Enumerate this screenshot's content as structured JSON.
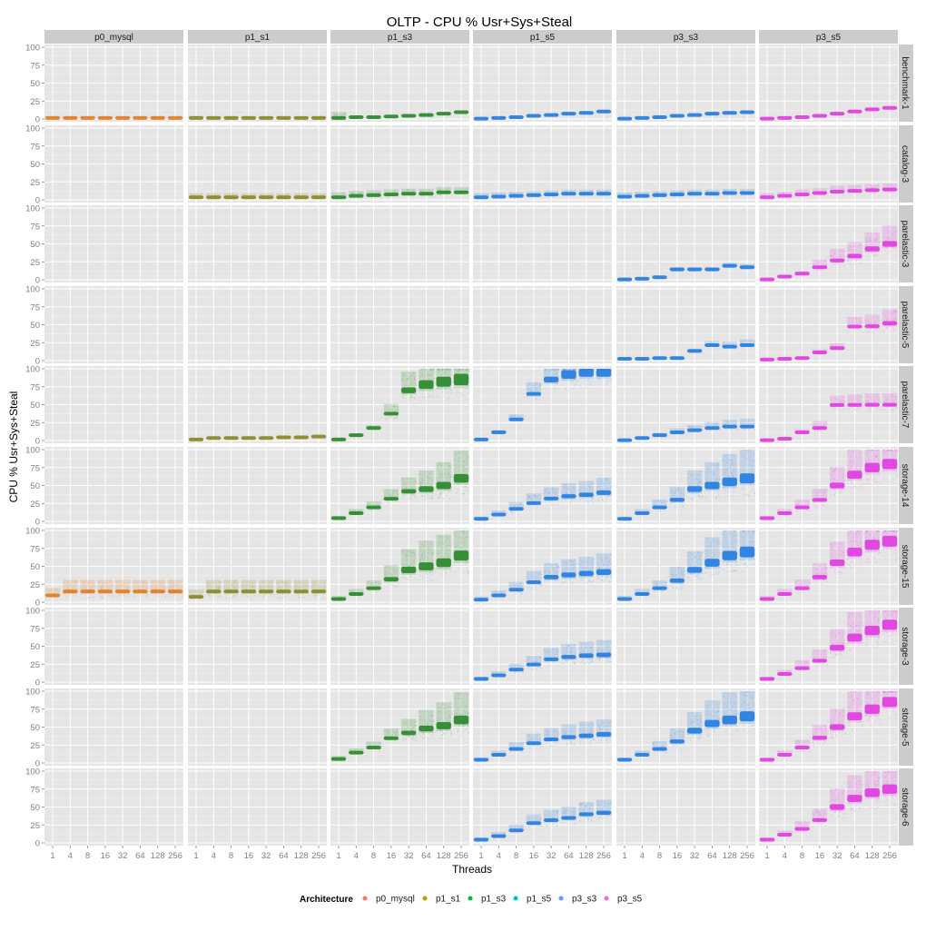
{
  "chart_data": {
    "type": "scatter",
    "title": "OLTP - CPU % Usr+Sys+Steal",
    "xlabel": "Threads",
    "ylabel": "CPU % Usr+Sys+Steal",
    "x_scale": "log2",
    "x_ticks": [
      "1",
      "4",
      "8",
      "16",
      "32",
      "64",
      "128",
      "256"
    ],
    "x_values": [
      1,
      4,
      8,
      16,
      32,
      64,
      128,
      256
    ],
    "ylim": [
      0,
      100
    ],
    "y_ticks": [
      "0",
      "25",
      "50",
      "75",
      "100"
    ],
    "facet_columns": [
      "p0_mysql",
      "p1_s1",
      "p1_s3",
      "p1_s5",
      "p3_s3",
      "p3_s5"
    ],
    "facet_rows": [
      "benchmark-1",
      "catalog-3",
      "parelastic-3",
      "parelastic-5",
      "parelastic-7",
      "storage-14",
      "storage-15",
      "storage-3",
      "storage-5",
      "storage-6"
    ],
    "legend_title": "Architecture",
    "legend_position": "bottom",
    "legend": [
      {
        "label": "p0_mysql",
        "color": "#f8766d"
      },
      {
        "label": "p1_s1",
        "color": "#b79f00"
      },
      {
        "label": "p1_s3",
        "color": "#00ba38"
      },
      {
        "label": "p1_s5",
        "color": "#00bfc4"
      },
      {
        "label": "p3_s3",
        "color": "#619cff"
      },
      {
        "label": "p3_s5",
        "color": "#f564e3"
      }
    ],
    "series_colors": {
      "p0_mysql": "#e0802a",
      "p1_s1": "#8a8a2a",
      "p1_s3": "#2e8b2e",
      "p1_s5": "#2a7fe0",
      "p3_s3": "#2a7fe0",
      "p3_s5": "#e040e0"
    },
    "panels": [
      {
        "row": "benchmark-1",
        "col": "p0_mysql",
        "median": [
          2,
          2,
          2,
          2,
          2,
          2,
          2,
          2
        ],
        "spread": [
          0,
          0,
          0,
          0,
          0,
          0,
          0,
          0
        ]
      },
      {
        "row": "benchmark-1",
        "col": "p1_s1",
        "median": [
          2,
          2,
          2,
          2,
          2,
          2,
          2,
          2
        ],
        "spread": [
          0,
          0,
          0,
          0,
          0,
          0,
          0,
          0
        ]
      },
      {
        "row": "benchmark-1",
        "col": "p1_s3",
        "median": [
          2,
          3,
          3,
          4,
          5,
          6,
          8,
          10
        ],
        "spread": [
          12,
          0,
          0,
          0,
          0,
          0,
          0,
          0
        ]
      },
      {
        "row": "benchmark-1",
        "col": "p1_s5",
        "median": [
          1,
          2,
          3,
          5,
          6,
          8,
          9,
          11
        ],
        "spread": [
          0,
          0,
          0,
          0,
          0,
          0,
          0,
          0
        ]
      },
      {
        "row": "benchmark-1",
        "col": "p3_s3",
        "median": [
          1,
          2,
          3,
          5,
          6,
          8,
          9,
          10
        ],
        "spread": [
          0,
          0,
          0,
          0,
          0,
          0,
          0,
          0
        ]
      },
      {
        "row": "benchmark-1",
        "col": "p3_s5",
        "median": [
          1,
          2,
          3,
          5,
          8,
          11,
          14,
          16
        ],
        "spread": [
          0,
          0,
          0,
          0,
          0,
          0,
          0,
          0
        ]
      },
      {
        "row": "catalog-3",
        "col": "p1_s1",
        "median": [
          4,
          4,
          4,
          4,
          4,
          4,
          4,
          4
        ],
        "spread": [
          8,
          8,
          8,
          8,
          8,
          8,
          8,
          8
        ]
      },
      {
        "row": "catalog-3",
        "col": "p1_s3",
        "median": [
          4,
          6,
          7,
          8,
          9,
          9,
          11,
          11
        ],
        "spread": [
          10,
          10,
          10,
          10,
          10,
          10,
          10,
          10
        ]
      },
      {
        "row": "catalog-3",
        "col": "p1_s5",
        "median": [
          4,
          5,
          6,
          7,
          8,
          9,
          9,
          9
        ],
        "spread": [
          8,
          8,
          8,
          8,
          8,
          8,
          8,
          8
        ]
      },
      {
        "row": "catalog-3",
        "col": "p3_s3",
        "median": [
          5,
          6,
          7,
          8,
          9,
          9,
          10,
          10
        ],
        "spread": [
          8,
          8,
          8,
          8,
          8,
          8,
          8,
          8
        ]
      },
      {
        "row": "catalog-3",
        "col": "p3_s5",
        "median": [
          4,
          6,
          8,
          10,
          12,
          13,
          14,
          15
        ],
        "spread": [
          8,
          8,
          10,
          10,
          12,
          12,
          12,
          12
        ]
      },
      {
        "row": "parelastic-3",
        "col": "p3_s3",
        "median": [
          1,
          2,
          4,
          15,
          15,
          15,
          20,
          18
        ],
        "spread": [
          0,
          0,
          0,
          4,
          4,
          4,
          6,
          6
        ]
      },
      {
        "row": "parelastic-3",
        "col": "p3_s5",
        "median": [
          1,
          5,
          9,
          18,
          27,
          33,
          43,
          50
        ],
        "spread": [
          0,
          2,
          5,
          15,
          25,
          30,
          35,
          40
        ]
      },
      {
        "row": "parelastic-5",
        "col": "p3_s3",
        "median": [
          3,
          3,
          4,
          4,
          14,
          22,
          20,
          22
        ],
        "spread": [
          0,
          0,
          0,
          0,
          4,
          8,
          10,
          12
        ]
      },
      {
        "row": "parelastic-5",
        "col": "p3_s5",
        "median": [
          2,
          3,
          4,
          12,
          18,
          48,
          48,
          52
        ],
        "spread": [
          0,
          0,
          2,
          6,
          10,
          20,
          25,
          30
        ]
      },
      {
        "row": "parelastic-7",
        "col": "p1_s1",
        "median": [
          2,
          4,
          4,
          4,
          4,
          5,
          5,
          6
        ],
        "spread": [
          0,
          0,
          0,
          0,
          0,
          2,
          2,
          2
        ]
      },
      {
        "row": "parelastic-7",
        "col": "p1_s3",
        "median": [
          2,
          8,
          18,
          38,
          70,
          78,
          82,
          85
        ],
        "spread": [
          0,
          2,
          5,
          20,
          40,
          60,
          70,
          80
        ]
      },
      {
        "row": "parelastic-7",
        "col": "p1_s5",
        "median": [
          2,
          12,
          30,
          65,
          85,
          92,
          95,
          95
        ],
        "spread": [
          0,
          4,
          10,
          25,
          40,
          60,
          60,
          60
        ]
      },
      {
        "row": "parelastic-7",
        "col": "p3_s3",
        "median": [
          1,
          4,
          8,
          12,
          15,
          18,
          20,
          20
        ],
        "spread": [
          0,
          2,
          4,
          8,
          10,
          12,
          14,
          16
        ]
      },
      {
        "row": "parelastic-7",
        "col": "p3_s5",
        "median": [
          1,
          3,
          12,
          18,
          50,
          50,
          50,
          50
        ],
        "spread": [
          0,
          2,
          6,
          14,
          20,
          22,
          24,
          24
        ]
      },
      {
        "row": "storage-14",
        "col": "p1_s3",
        "median": [
          5,
          12,
          20,
          32,
          42,
          45,
          50,
          60
        ],
        "spread": [
          4,
          8,
          12,
          20,
          30,
          40,
          50,
          60
        ]
      },
      {
        "row": "storage-14",
        "col": "p1_s5",
        "median": [
          4,
          10,
          18,
          26,
          32,
          35,
          37,
          40
        ],
        "spread": [
          4,
          8,
          14,
          20,
          24,
          28,
          30,
          32
        ]
      },
      {
        "row": "storage-14",
        "col": "p3_s3",
        "median": [
          4,
          12,
          20,
          30,
          45,
          50,
          55,
          60
        ],
        "spread": [
          4,
          8,
          16,
          28,
          40,
          50,
          60,
          70
        ]
      },
      {
        "row": "storage-14",
        "col": "p3_s5",
        "median": [
          5,
          12,
          20,
          30,
          50,
          65,
          75,
          80
        ],
        "spread": [
          4,
          8,
          16,
          24,
          40,
          55,
          65,
          70
        ]
      },
      {
        "row": "storage-15",
        "col": "p0_mysql",
        "median": [
          10,
          15,
          15,
          15,
          15,
          15,
          15,
          15
        ],
        "spread": [
          15,
          25,
          25,
          25,
          25,
          25,
          25,
          25
        ]
      },
      {
        "row": "storage-15",
        "col": "p1_s1",
        "median": [
          8,
          15,
          15,
          15,
          15,
          15,
          15,
          15
        ],
        "spread": [
          15,
          25,
          25,
          25,
          25,
          25,
          25,
          25
        ]
      },
      {
        "row": "storage-15",
        "col": "p1_s3",
        "median": [
          5,
          12,
          20,
          32,
          45,
          50,
          55,
          65
        ],
        "spread": [
          6,
          10,
          16,
          30,
          45,
          55,
          60,
          70
        ]
      },
      {
        "row": "storage-15",
        "col": "p1_s5",
        "median": [
          4,
          10,
          18,
          28,
          35,
          38,
          40,
          42
        ],
        "spread": [
          6,
          10,
          16,
          24,
          30,
          34,
          36,
          40
        ]
      },
      {
        "row": "storage-15",
        "col": "p3_s3",
        "median": [
          5,
          12,
          20,
          30,
          45,
          55,
          65,
          70
        ],
        "spread": [
          6,
          10,
          16,
          30,
          40,
          55,
          65,
          75
        ]
      },
      {
        "row": "storage-15",
        "col": "p3_s5",
        "median": [
          5,
          12,
          20,
          35,
          55,
          70,
          80,
          85
        ],
        "spread": [
          6,
          10,
          18,
          30,
          45,
          60,
          70,
          75
        ]
      },
      {
        "row": "storage-3",
        "col": "p1_s5",
        "median": [
          5,
          10,
          18,
          25,
          32,
          35,
          37,
          38
        ],
        "spread": [
          4,
          8,
          12,
          18,
          24,
          28,
          30,
          32
        ]
      },
      {
        "row": "storage-3",
        "col": "p3_s5",
        "median": [
          5,
          12,
          20,
          30,
          48,
          62,
          72,
          80
        ],
        "spread": [
          4,
          8,
          16,
          24,
          40,
          55,
          65,
          70
        ]
      },
      {
        "row": "storage-5",
        "col": "p1_s3",
        "median": [
          6,
          15,
          22,
          35,
          42,
          48,
          52,
          60
        ],
        "spread": [
          6,
          8,
          12,
          20,
          30,
          40,
          50,
          60
        ]
      },
      {
        "row": "storage-5",
        "col": "p1_s5",
        "median": [
          5,
          12,
          20,
          28,
          33,
          36,
          38,
          40
        ],
        "spread": [
          4,
          8,
          14,
          20,
          24,
          28,
          30,
          32
        ]
      },
      {
        "row": "storage-5",
        "col": "p3_s3",
        "median": [
          5,
          12,
          20,
          30,
          45,
          55,
          60,
          65
        ],
        "spread": [
          4,
          8,
          16,
          28,
          40,
          50,
          60,
          70
        ]
      },
      {
        "row": "storage-5",
        "col": "p3_s5",
        "median": [
          5,
          12,
          22,
          35,
          50,
          65,
          75,
          85
        ],
        "spread": [
          4,
          8,
          16,
          28,
          40,
          55,
          65,
          70
        ]
      },
      {
        "row": "storage-6",
        "col": "p1_s5",
        "median": [
          5,
          10,
          18,
          28,
          32,
          35,
          40,
          42
        ],
        "spread": [
          4,
          8,
          12,
          18,
          22,
          24,
          26,
          28
        ]
      },
      {
        "row": "storage-6",
        "col": "p3_s5",
        "median": [
          5,
          12,
          20,
          32,
          50,
          62,
          70,
          75
        ],
        "spread": [
          4,
          8,
          16,
          24,
          40,
          50,
          60,
          65
        ]
      }
    ]
  }
}
